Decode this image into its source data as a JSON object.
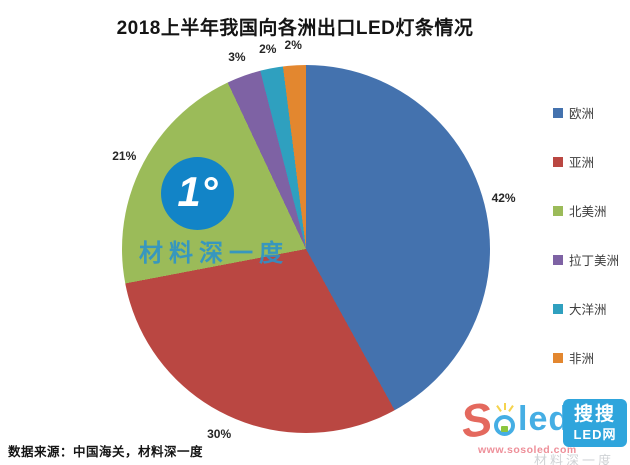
{
  "title": "2018上半年我国向各洲出口LED灯条情况",
  "chart_data": {
    "type": "pie",
    "title": "2018上半年我国向各洲出口LED灯条情况",
    "labels": [
      "欧洲",
      "亚洲",
      "北美洲",
      "拉丁美洲",
      "大洋洲",
      "非洲"
    ],
    "values": [
      42,
      30,
      21,
      3,
      2,
      2
    ],
    "unit": "%",
    "data_labels": [
      "42%",
      "30%",
      "21%",
      "3%",
      "2%",
      "2%"
    ],
    "colors": [
      "#4472ae",
      "#ba4742",
      "#9bbb59",
      "#7e62a4",
      "#2fa0bf",
      "#e3872f"
    ],
    "direction": "clockwise",
    "start_angle_deg": 0,
    "legend_position": "right",
    "label_position": "outside"
  },
  "watermark": {
    "logo_text": "1°",
    "logo_bg": "#1284c7",
    "brand_text": "材料深一度",
    "text_color": "#2a93cc"
  },
  "footer": {
    "source": "数据来源：中国海关，材料深一度"
  },
  "soled_logo": {
    "s": "S",
    "rest": "led",
    "s_color": "#e4695e",
    "rest_color": "#45aee4",
    "box_bg": "#2fa5dc",
    "tag_line1": "搜搜",
    "tag_line2": "LED网",
    "url": "www.sosoled.com",
    "url_color": "#ee8f99"
  },
  "bottom_fragment": {
    "text": "材料深一度",
    "color": "#8a9097"
  }
}
